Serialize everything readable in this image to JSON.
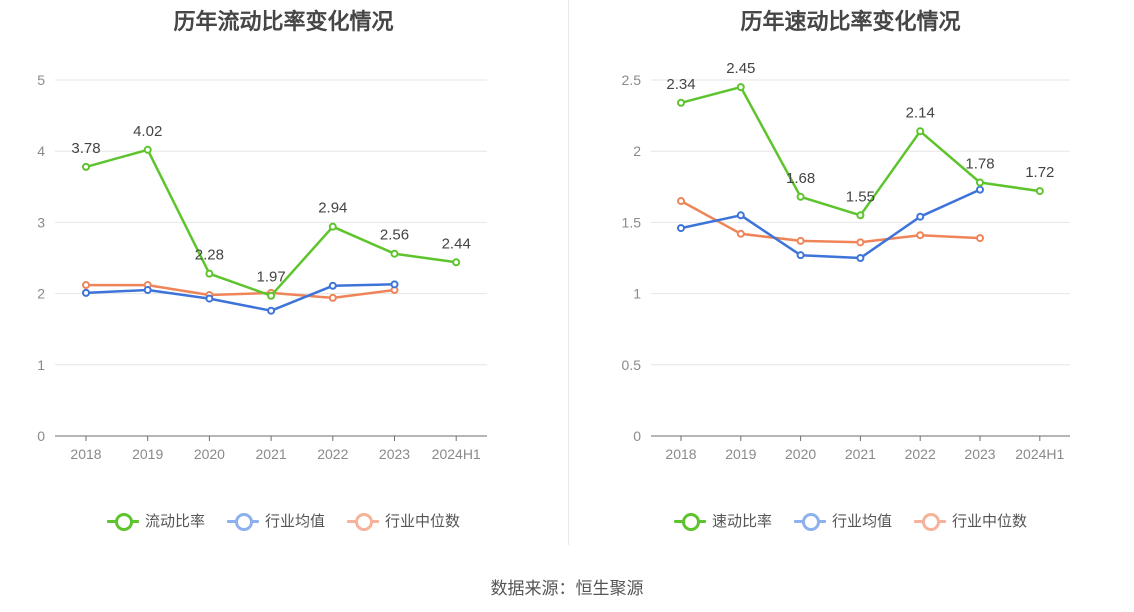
{
  "source": "数据来源：恒生聚源",
  "chart_data": [
    {
      "type": "line",
      "title": "历年流动比率变化情况",
      "categories": [
        "2018",
        "2019",
        "2020",
        "2021",
        "2022",
        "2023",
        "2024H1"
      ],
      "ylim": [
        0,
        5
      ],
      "yticks": [
        0,
        1,
        2,
        3,
        4,
        5
      ],
      "ytick_labels": [
        "0",
        "1",
        "2",
        "3",
        "4",
        "5"
      ],
      "grid": true,
      "legend_position": "bottom",
      "series": [
        {
          "name": "流动比率",
          "color": "#5ec42d",
          "values": [
            3.78,
            4.02,
            2.28,
            1.97,
            2.94,
            2.56,
            2.44
          ],
          "labels": [
            "3.78",
            "4.02",
            "2.28",
            "1.97",
            "2.94",
            "2.56",
            "2.44"
          ]
        },
        {
          "name": "行业均值",
          "color": "#3e74d9",
          "values": [
            2.01,
            2.05,
            1.93,
            1.76,
            2.11,
            2.13,
            null
          ]
        },
        {
          "name": "行业中位数",
          "color": "#ef8459",
          "values": [
            2.12,
            2.12,
            1.98,
            2.01,
            1.94,
            2.05,
            null
          ]
        }
      ]
    },
    {
      "type": "line",
      "title": "历年速动比率变化情况",
      "categories": [
        "2018",
        "2019",
        "2020",
        "2021",
        "2022",
        "2023",
        "2024H1"
      ],
      "ylim": [
        0,
        2.5
      ],
      "yticks": [
        0,
        0.5,
        1,
        1.5,
        2,
        2.5
      ],
      "ytick_labels": [
        "0",
        "0.5",
        "1",
        "1.5",
        "2",
        "2.5"
      ],
      "grid": true,
      "legend_position": "bottom",
      "series": [
        {
          "name": "速动比率",
          "color": "#5ec42d",
          "values": [
            2.34,
            2.45,
            1.68,
            1.55,
            2.14,
            1.78,
            1.72
          ],
          "labels": [
            "2.34",
            "2.45",
            "1.68",
            "1.55",
            "2.14",
            "1.78",
            "1.72"
          ]
        },
        {
          "name": "行业均值",
          "color": "#3e74d9",
          "values": [
            1.46,
            1.55,
            1.27,
            1.25,
            1.54,
            1.73,
            null
          ]
        },
        {
          "name": "行业中位数",
          "color": "#ef8459",
          "values": [
            1.65,
            1.42,
            1.37,
            1.36,
            1.41,
            1.39,
            null
          ]
        }
      ]
    }
  ],
  "legend_colors": {
    "main": "#5ec42d",
    "avg": "#8fb0ee",
    "median": "#f6b29a"
  }
}
